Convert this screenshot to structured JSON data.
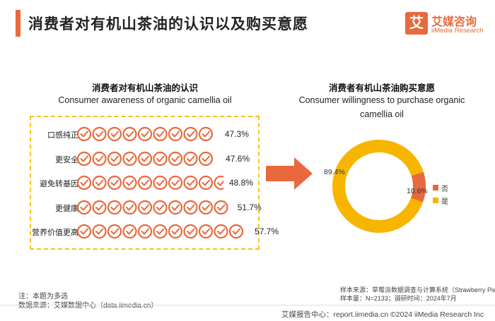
{
  "header": {
    "title": "消费者对有机山茶油的认识以及购买意愿",
    "logo_char": "艾",
    "logo_cn": "艾媒咨询",
    "logo_en": "iiMedia Research"
  },
  "left_section": {
    "title_cn": "消费者对有机山茶油的认识",
    "title_en": "Consumer awareness of organic camellia oil"
  },
  "right_section": {
    "title_cn": "消费者有机山茶油购买意愿",
    "title_en_line1": "Consumer willingness to purchase organic",
    "title_en_line2": "camellia oil"
  },
  "chart_data": [
    {
      "type": "bar",
      "title": "消费者对有机山茶油的认识",
      "subtitle": "Consumer awareness of organic camellia oil",
      "categories": [
        "口感纯正",
        "更安全",
        "避免转基因",
        "更健康",
        "营养价值更高"
      ],
      "values": [
        47.3,
        47.6,
        48.8,
        51.7,
        57.7
      ],
      "value_labels": [
        "47.3%",
        "47.6%",
        "48.8%",
        "51.7%",
        "57.7%"
      ],
      "unit": "%",
      "marker": "check-circle-icon"
    },
    {
      "type": "pie",
      "style": "donut",
      "title": "消费者有机山茶油购买意愿",
      "subtitle": "Consumer willingness to purchase organic camellia oil",
      "labels": [
        "否",
        "是"
      ],
      "values": [
        10.6,
        89.4
      ],
      "value_labels": [
        "10.6%",
        "89.4%"
      ],
      "colors": [
        "#e8693d",
        "#f7b500"
      ],
      "legend": "right"
    }
  ],
  "colors": {
    "accent": "#e8693d",
    "yellow": "#f7b500",
    "dash": "#f5c518"
  },
  "notes": {
    "note": "注：本题为多选",
    "source_left": "数据来源：艾媒数据中心（data.iimedia.cn）",
    "sample_source": "样本来源：草莓派数据调查与计算系统（Strawberry Pie）",
    "sample_size": "样本量：N=2133；调研时间：2024年7月"
  },
  "footer": {
    "text": "艾媒报告中心：report.iimedia.cn ©2024 iiMedia Research Inc"
  }
}
